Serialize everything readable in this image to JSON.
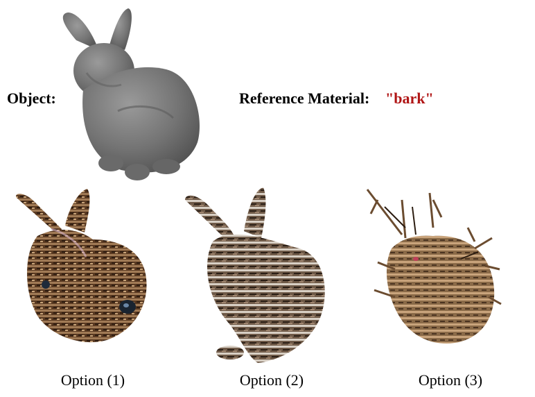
{
  "header": {
    "object_label": "Object:",
    "reference_label": "Reference Material:",
    "material_value": "\"bark\"",
    "material_color": "#b01515"
  },
  "object_image": {
    "icon": "gray-bunny-render",
    "color": "#7a7a7a"
  },
  "options": [
    {
      "caption": "Option (1)",
      "icon": "bark-bunny-1"
    },
    {
      "caption": "Option (2)",
      "icon": "bark-bunny-2"
    },
    {
      "caption": "Option (3)",
      "icon": "bark-bunny-3"
    }
  ]
}
